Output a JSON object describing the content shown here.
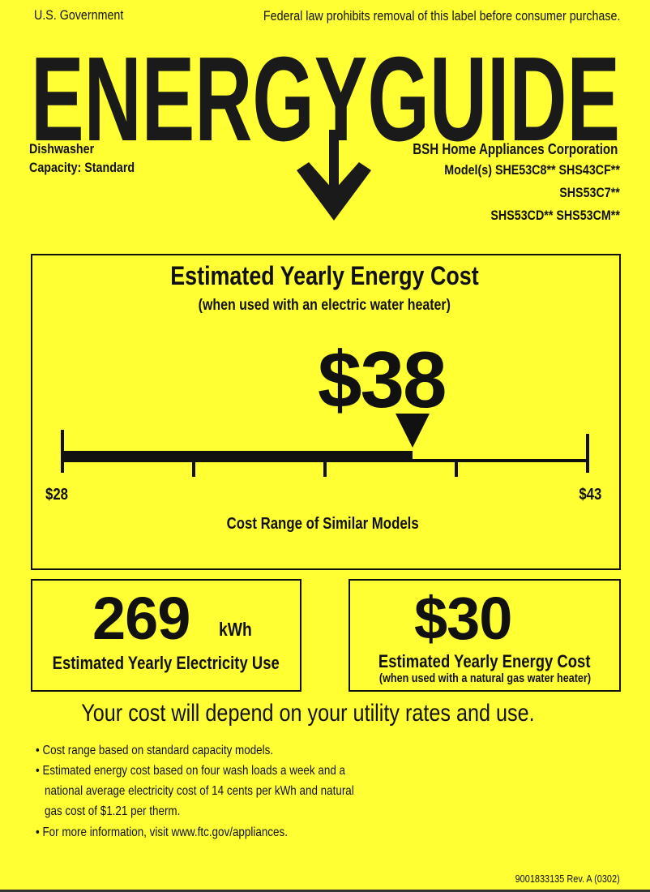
{
  "header": {
    "government": "U.S. Government",
    "notice": "Federal law prohibits removal of this label before consumer purchase."
  },
  "logo": {
    "text": "ENERGYGUIDE",
    "icon": "down-arrow-icon"
  },
  "product": {
    "type": "Dishwasher",
    "capacity_label": "Capacity:",
    "capacity_value": "Standard",
    "manufacturer": "BSH Home Appliances Corporation",
    "models_line1": "Model(s) SHE53C8** SHS43CF**",
    "models_line2": "SHS53C7**",
    "models_line3": "SHS53CD** SHS53CM**"
  },
  "main_cost": {
    "title": "Estimated Yearly Energy Cost",
    "subtitle": "(when used with an electric water heater)",
    "value": "$38",
    "range_min_label": "$28",
    "range_max_label": "$43",
    "range_min": 28,
    "range_max": 43,
    "current": 38,
    "range_caption": "Cost Range of Similar Models"
  },
  "electricity": {
    "value": "269",
    "unit": "kWh",
    "label": "Estimated Yearly Electricity Use"
  },
  "gas_cost": {
    "value": "$30",
    "label": "Estimated Yearly Energy Cost",
    "sublabel": "(when used with a natural gas water heater)"
  },
  "disclaimer": "Your cost will depend on your utility rates and use.",
  "notes": [
    "Cost range based on standard capacity models.",
    "Estimated energy cost based on four wash loads a week and a",
    "national average electricity cost of 14 cents per kWh and natural",
    "gas cost of $1.21 per therm.",
    "For more information, visit www.ftc.gov/appliances."
  ],
  "footer": "9001833135 Rev. A (0302)",
  "colors": {
    "background": "#ffff33",
    "ink": "#111111"
  }
}
